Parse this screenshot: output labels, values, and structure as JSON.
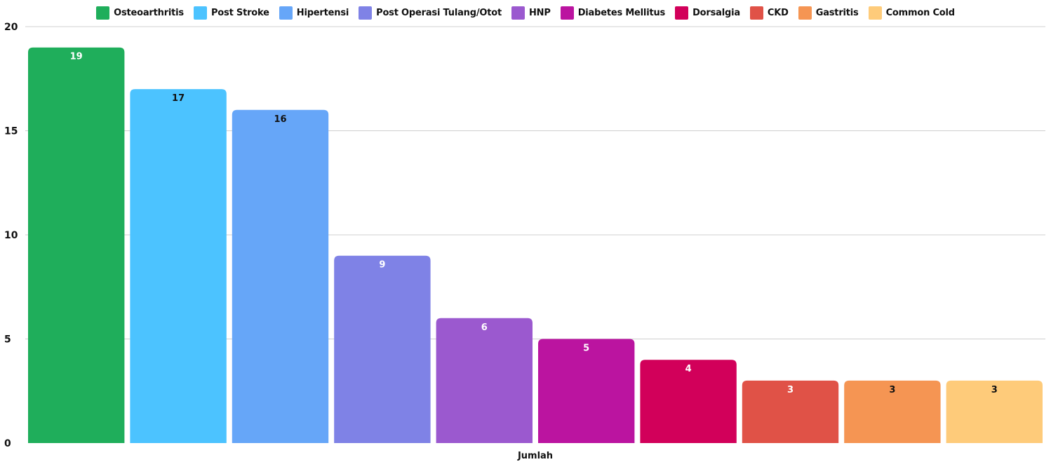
{
  "chart_data": {
    "type": "bar",
    "categories": [
      "Jumlah"
    ],
    "series": [
      {
        "name": "Osteoarthritis",
        "values": [
          19
        ],
        "color": "#1fae5b",
        "label_color": "#ffffff"
      },
      {
        "name": "Post Stroke",
        "values": [
          17
        ],
        "color": "#4cc3ff",
        "label_color": "#111111"
      },
      {
        "name": "Hipertensi",
        "values": [
          16
        ],
        "color": "#66a6f8",
        "label_color": "#111111"
      },
      {
        "name": "Post Operasi Tulang/Otot",
        "values": [
          9
        ],
        "color": "#7f82e6",
        "label_color": "#ffffff"
      },
      {
        "name": "HNP",
        "values": [
          6
        ],
        "color": "#9b59cf",
        "label_color": "#ffffff"
      },
      {
        "name": "Diabetes Mellitus",
        "values": [
          5
        ],
        "color": "#bb14a0",
        "label_color": "#ffffff"
      },
      {
        "name": "Dorsalgia",
        "values": [
          4
        ],
        "color": "#d2005a",
        "label_color": "#ffffff"
      },
      {
        "name": "CKD",
        "values": [
          3
        ],
        "color": "#e05247",
        "label_color": "#ffffff"
      },
      {
        "name": "Gastritis",
        "values": [
          3
        ],
        "color": "#f59553",
        "label_color": "#111111"
      },
      {
        "name": "Common Cold",
        "values": [
          3
        ],
        "color": "#fecb7a",
        "label_color": "#111111"
      }
    ],
    "xlabel": "Jumlah",
    "ylabel": "",
    "ylim": [
      0,
      20
    ],
    "yticks": [
      "0",
      "5",
      "10",
      "15",
      "20"
    ],
    "grid": true,
    "legend_position": "top"
  }
}
